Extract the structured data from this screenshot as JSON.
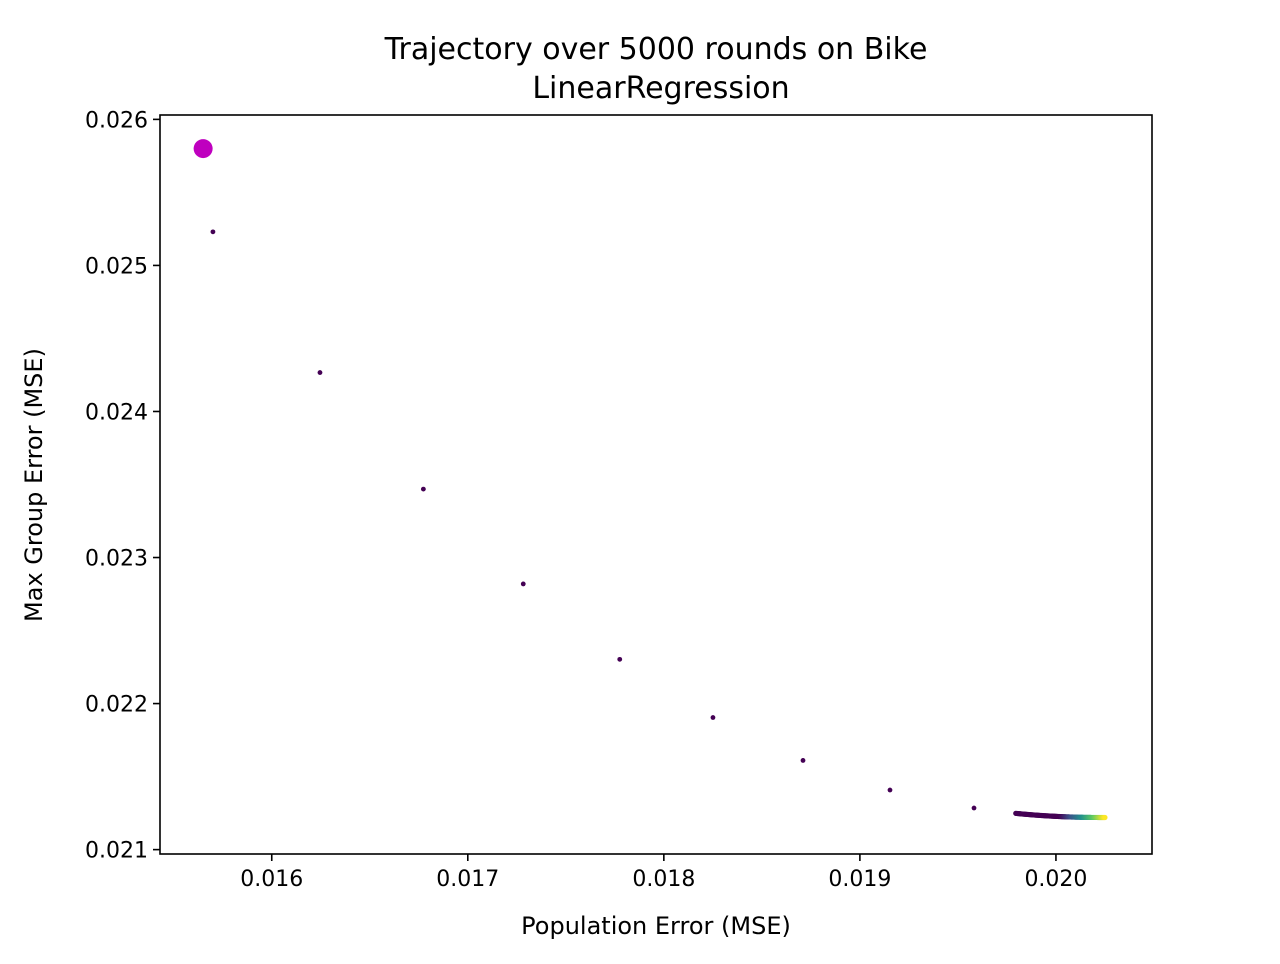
{
  "chart_data": {
    "type": "scatter",
    "title": "Trajectory over 5000 rounds on Bike",
    "subtitle": "LinearRegression",
    "xlabel": "Population Error (MSE)",
    "ylabel": "Max Group Error (MSE)",
    "xlim": [
      0.01543,
      0.02049
    ],
    "ylim": [
      0.02097,
      0.02603
    ],
    "xticks": [
      {
        "value": 0.016,
        "label": "0.016"
      },
      {
        "value": 0.017,
        "label": "0.017"
      },
      {
        "value": 0.018,
        "label": "0.018"
      },
      {
        "value": 0.019,
        "label": "0.019"
      },
      {
        "value": 0.02,
        "label": "0.020"
      }
    ],
    "yticks": [
      {
        "value": 0.021,
        "label": "0.021"
      },
      {
        "value": 0.022,
        "label": "0.022"
      },
      {
        "value": 0.023,
        "label": "0.023"
      },
      {
        "value": 0.024,
        "label": "0.024"
      },
      {
        "value": 0.025,
        "label": "0.025"
      },
      {
        "value": 0.026,
        "label": "0.026"
      }
    ],
    "grid": false,
    "start_point": {
      "x": 0.01565,
      "y": 0.0258,
      "color": "#bf00bf"
    },
    "trajectory": {
      "x_start": 0.0157,
      "y_start": 0.02523,
      "x_end": 0.02025,
      "y_end": 0.02122,
      "colormap": "viridis",
      "colors": [
        "#440154",
        "#3b528b",
        "#21918c",
        "#5ec962",
        "#fde725"
      ]
    }
  }
}
